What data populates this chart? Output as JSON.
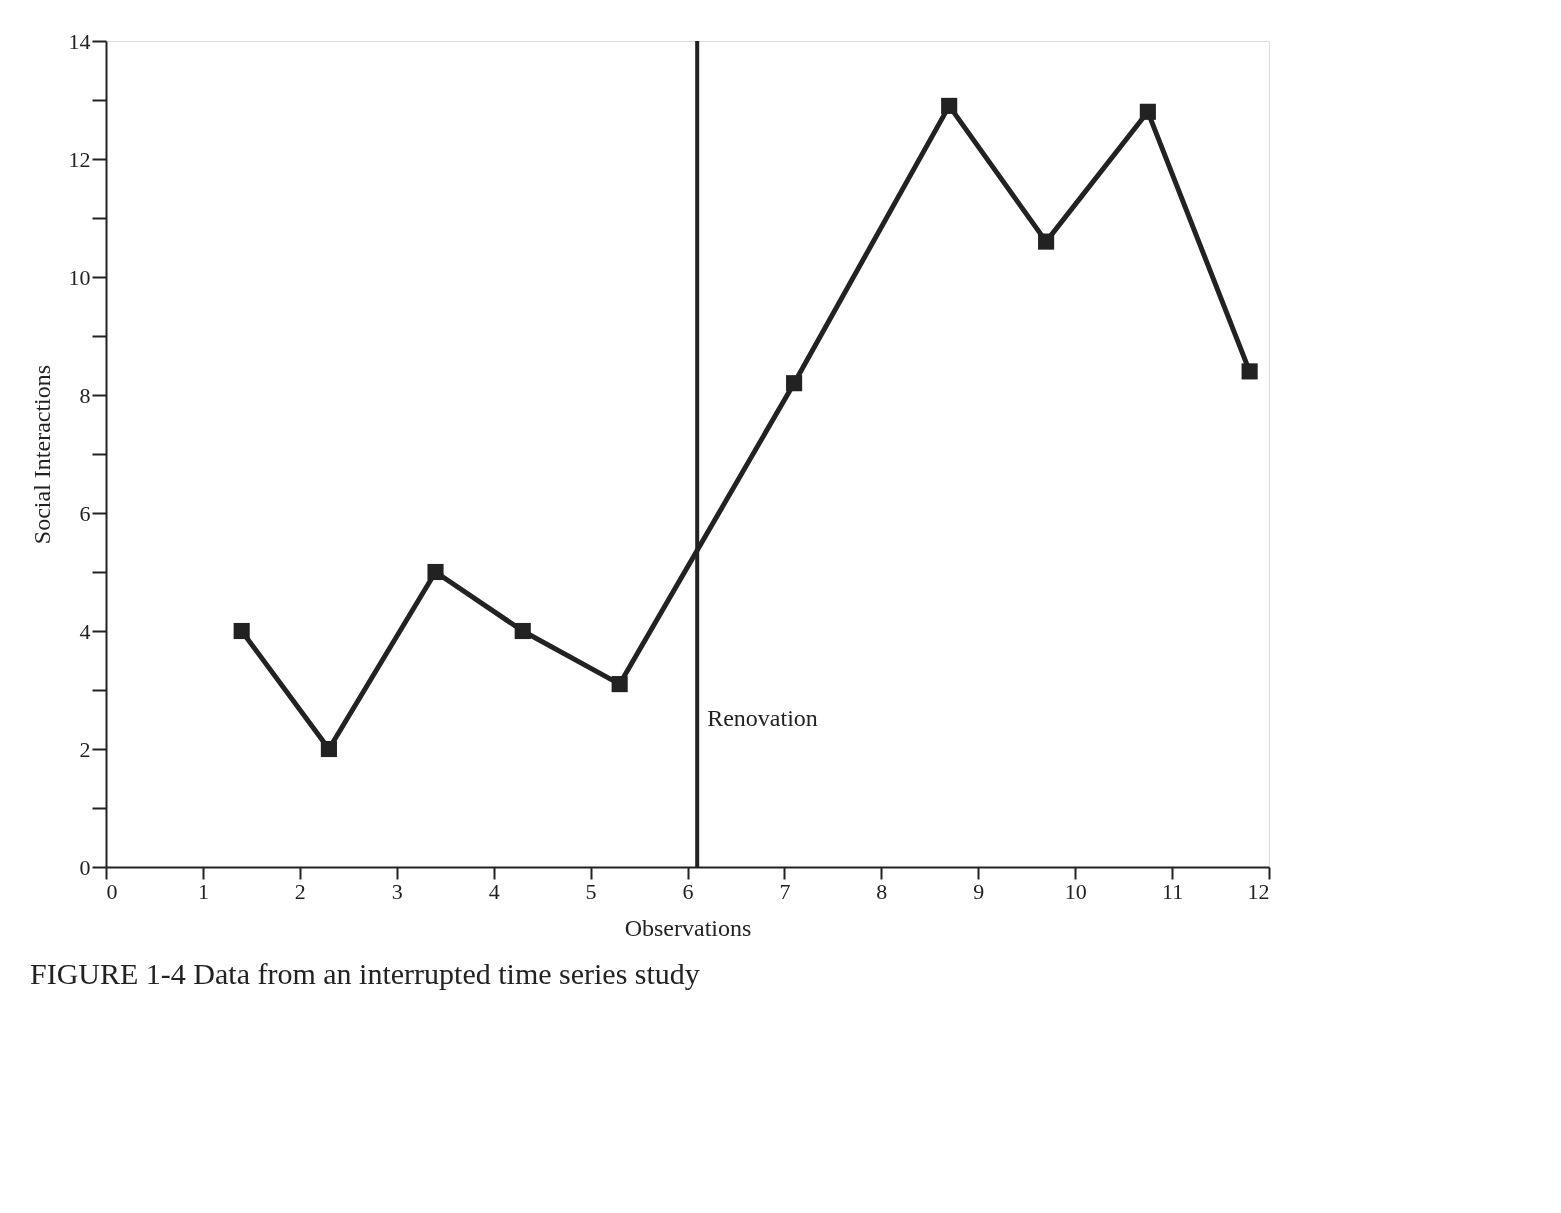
{
  "chart_data": {
    "type": "line",
    "title": "FIGURE 1-4 Data from an interrupted time series study",
    "xlabel": "Observations",
    "ylabel": "Social Interactions",
    "x": [
      1.4,
      2.3,
      3.4,
      4.3,
      5.3,
      7.1,
      8.7,
      9.7,
      10.75,
      11.8
    ],
    "series": [
      {
        "color": "#222222",
        "values": [
          4.0,
          2.0,
          5.0,
          4.0,
          3.1,
          8.2,
          12.9,
          10.6,
          12.8,
          8.4
        ]
      }
    ],
    "xlim": [
      0,
      12
    ],
    "ylim": [
      0,
      14
    ],
    "xticks": [
      0,
      1,
      2,
      3,
      4,
      5,
      6,
      7,
      8,
      9,
      10,
      11,
      12
    ],
    "yticks": [
      0,
      {
        "value": 1,
        "label": null
      },
      2,
      {
        "value": 3,
        "label": null
      },
      4,
      {
        "value": 5,
        "label": null
      },
      6,
      {
        "value": 7,
        "label": null
      },
      8,
      {
        "value": 9,
        "label": null
      },
      10,
      {
        "value": 11,
        "label": null
      },
      12,
      {
        "value": 13,
        "label": null
      },
      14
    ],
    "ref_lines": [
      {
        "axis": "x",
        "value": 6.1,
        "label": "Renovation",
        "color": "#222222"
      }
    ],
    "marker": "square",
    "line_style": "solid",
    "grid": false
  }
}
